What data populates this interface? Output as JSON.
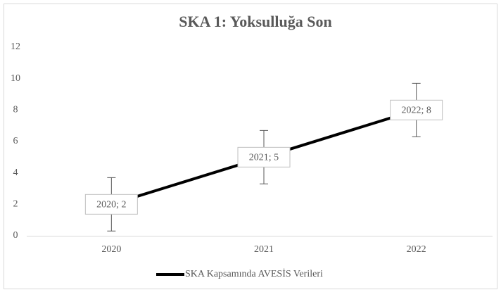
{
  "chart_data": {
    "type": "line",
    "title": "SKA 1: Yoksulluğa Son",
    "categories": [
      "2020",
      "2021",
      "2022"
    ],
    "series": [
      {
        "name": "SKA Kapsamında AVESİS Verileri",
        "color": "#000000",
        "values": [
          2,
          5,
          8
        ],
        "value_labels": [
          "2020; 2",
          "2021; 5",
          "2022; 8"
        ],
        "error": [
          1.7,
          1.7,
          1.7
        ]
      }
    ],
    "ylim": [
      0,
      12
    ],
    "yticks": [
      0,
      2,
      4,
      6,
      8,
      10,
      12
    ],
    "grid": false,
    "legend": "bottom"
  }
}
